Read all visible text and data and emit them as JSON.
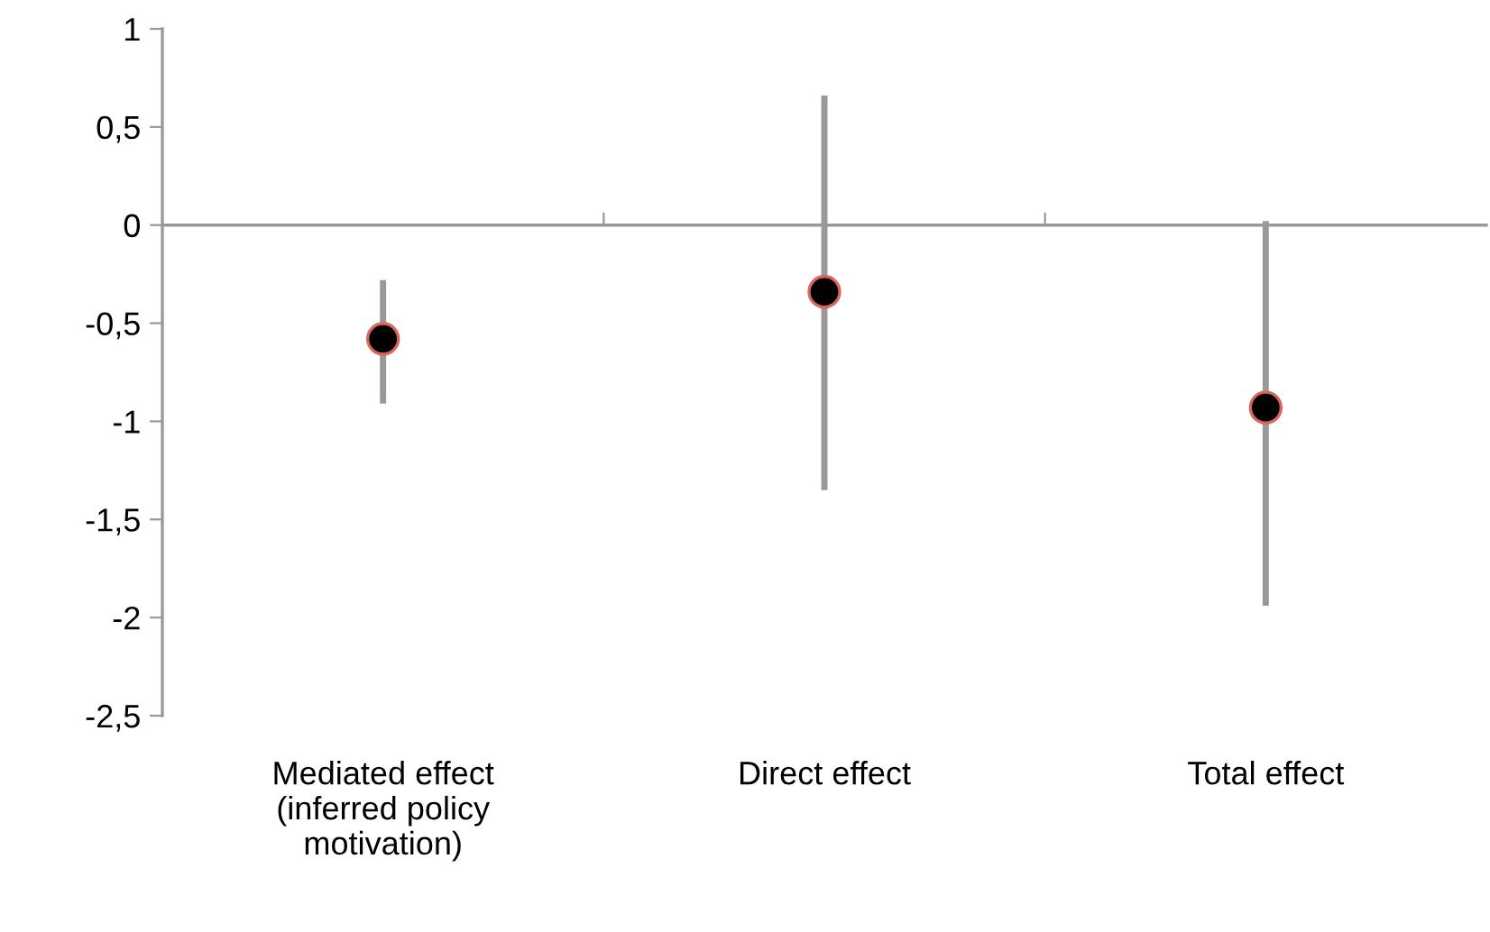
{
  "chart_data": {
    "type": "scatter",
    "categories": [
      "Mediated effect\n(inferred policy\nmotivation)",
      "Direct effect",
      "Total effect"
    ],
    "series": [
      {
        "color": "#000000",
        "values": [
          -0.58,
          -0.34,
          -0.93
        ],
        "errors": [
          [
            -0.91,
            -0.28
          ],
          [
            -1.35,
            0.66
          ],
          [
            -1.94,
            0.02
          ]
        ]
      }
    ],
    "marker": "circle",
    "ylim": [
      -2.5,
      1
    ],
    "yticks": [
      {
        "value": -2.5,
        "label": "-2,5"
      },
      -2,
      {
        "value": -1.5,
        "label": "-1,5"
      },
      -1,
      {
        "value": -0.5,
        "label": "-0,5"
      },
      0,
      {
        "value": 0.5,
        "label": "0,5"
      },
      1
    ],
    "line_style": "solid"
  }
}
